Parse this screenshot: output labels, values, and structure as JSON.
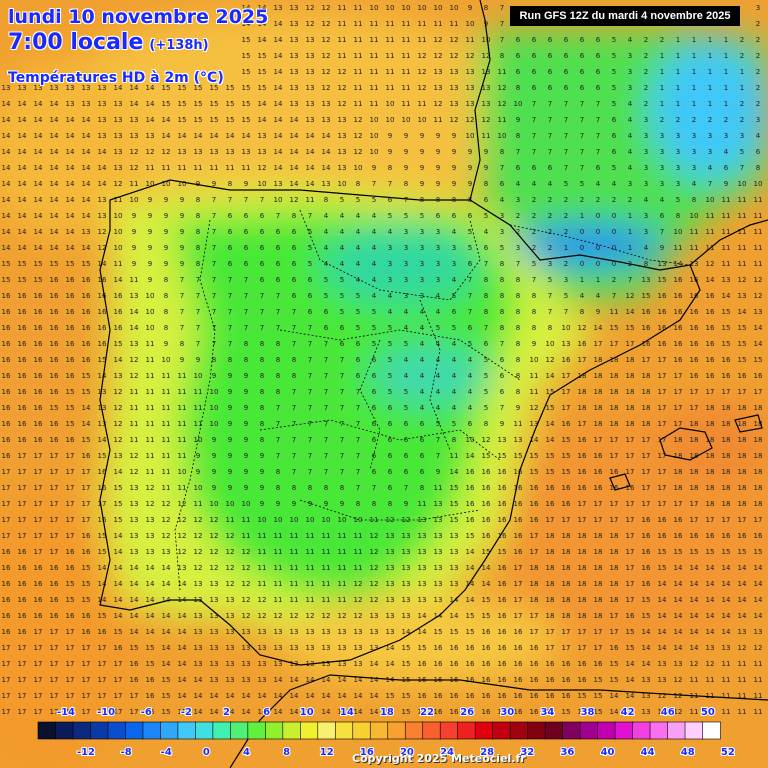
{
  "header": {
    "date": "lundi 10 novembre 2025",
    "hour": "7:00 locale",
    "lead_time": "(+138h)",
    "variable": "Températures HD à 2m (°C)",
    "run": "Run GFS 12Z du mardi 4 novembre 2025"
  },
  "footer": {
    "copyright": "Copyright 2025 Meteociel.fr"
  },
  "colors": {
    "land_green": "#44e838",
    "sea_orange": "#f0a030",
    "cold_blue": "#1a9cff",
    "title_blue": "#1a2aff"
  },
  "legend": {
    "swatches": [
      {
        "color": "#0a1030"
      },
      {
        "color": "#0a1a5a"
      },
      {
        "color": "#0a2a80"
      },
      {
        "color": "#0a3aa8"
      },
      {
        "color": "#0a4ed0"
      },
      {
        "color": "#0a66ea"
      },
      {
        "color": "#1a86f8"
      },
      {
        "color": "#30a8fa"
      },
      {
        "color": "#40c8f8"
      },
      {
        "color": "#40e0e0"
      },
      {
        "color": "#40f0b0"
      },
      {
        "color": "#50f078"
      },
      {
        "color": "#60f040"
      },
      {
        "color": "#90f030"
      },
      {
        "color": "#c8f030"
      },
      {
        "color": "#f0f030"
      },
      {
        "color": "#f8f070"
      },
      {
        "color": "#f8e040"
      },
      {
        "color": "#f8d030"
      },
      {
        "color": "#f8b830"
      },
      {
        "color": "#f8a030"
      },
      {
        "color": "#f88030"
      },
      {
        "color": "#f86030"
      },
      {
        "color": "#f84030"
      },
      {
        "color": "#f02020"
      },
      {
        "color": "#e00010"
      },
      {
        "color": "#c00010"
      },
      {
        "color": "#a00010"
      },
      {
        "color": "#800010"
      },
      {
        "color": "#700020"
      },
      {
        "color": "#800060"
      },
      {
        "color": "#a00090"
      },
      {
        "color": "#c000b0"
      },
      {
        "color": "#e010d0"
      },
      {
        "color": "#f040e0"
      },
      {
        "color": "#f870f0"
      },
      {
        "color": "#f8a0f8"
      },
      {
        "color": "#ffd0ff"
      },
      {
        "color": "#ffffff"
      }
    ],
    "top_labels": [
      "-14",
      "-10",
      "-6",
      "-2",
      "2",
      "6",
      "10",
      "14",
      "18",
      "22",
      "26",
      "30",
      "34",
      "38",
      "42",
      "46",
      "50"
    ],
    "bottom_labels": [
      "-12",
      "-8",
      "-4",
      "0",
      "4",
      "8",
      "12",
      "16",
      "20",
      "24",
      "28",
      "32",
      "36",
      "40",
      "44",
      "48",
      "52"
    ]
  },
  "map_data": {
    "grid_step": 16,
    "anchors": [
      {
        "x": 8,
        "y": 25,
        "v": 14
      },
      {
        "x": 28,
        "y": 12,
        "v": 15
      },
      {
        "x": 40,
        "y": 22,
        "v": 14
      },
      {
        "x": 40,
        "y": 85,
        "v": 13
      },
      {
        "x": 22,
        "y": 75,
        "v": 14
      },
      {
        "x": 10,
        "y": 90,
        "v": 17
      },
      {
        "x": 8,
        "y": 65,
        "v": 17
      },
      {
        "x": 5,
        "y": 45,
        "v": 16
      },
      {
        "x": 12,
        "y": 40,
        "v": 16
      },
      {
        "x": 20,
        "y": 32,
        "v": 9
      },
      {
        "x": 26,
        "y": 40,
        "v": 7
      },
      {
        "x": 33,
        "y": 31,
        "v": 6
      },
      {
        "x": 45,
        "y": 30,
        "v": 4
      },
      {
        "x": 55,
        "y": 34,
        "v": 3
      },
      {
        "x": 58,
        "y": 50,
        "v": 4
      },
      {
        "x": 52,
        "y": 60,
        "v": 6
      },
      {
        "x": 40,
        "y": 58,
        "v": 7
      },
      {
        "x": 30,
        "y": 60,
        "v": 9
      },
      {
        "x": 22,
        "y": 55,
        "v": 11
      },
      {
        "x": 24,
        "y": 72,
        "v": 12
      },
      {
        "x": 40,
        "y": 75,
        "v": 11
      },
      {
        "x": 55,
        "y": 72,
        "v": 13
      },
      {
        "x": 63,
        "y": 65,
        "v": 16
      },
      {
        "x": 66,
        "y": 38,
        "v": 8
      },
      {
        "x": 70,
        "y": 30,
        "v": 2
      },
      {
        "x": 78,
        "y": 32,
        "v": 0
      },
      {
        "x": 74,
        "y": 18,
        "v": 7
      },
      {
        "x": 90,
        "y": 12,
        "v": 1
      },
      {
        "x": 88,
        "y": 20,
        "v": 3
      },
      {
        "x": 95,
        "y": 30,
        "v": 11
      },
      {
        "x": 88,
        "y": 40,
        "v": 16
      },
      {
        "x": 80,
        "y": 50,
        "v": 18
      },
      {
        "x": 95,
        "y": 60,
        "v": 18
      },
      {
        "x": 75,
        "y": 75,
        "v": 18
      },
      {
        "x": 92,
        "y": 80,
        "v": 14
      },
      {
        "x": 96,
        "y": 90,
        "v": 11
      },
      {
        "x": 60,
        "y": 90,
        "v": 16
      },
      {
        "x": 40,
        "y": 92,
        "v": 14
      },
      {
        "x": 70,
        "y": 8,
        "v": 6
      },
      {
        "x": 62,
        "y": 12,
        "v": 13
      },
      {
        "x": 58,
        "y": 22,
        "v": 9
      }
    ]
  }
}
